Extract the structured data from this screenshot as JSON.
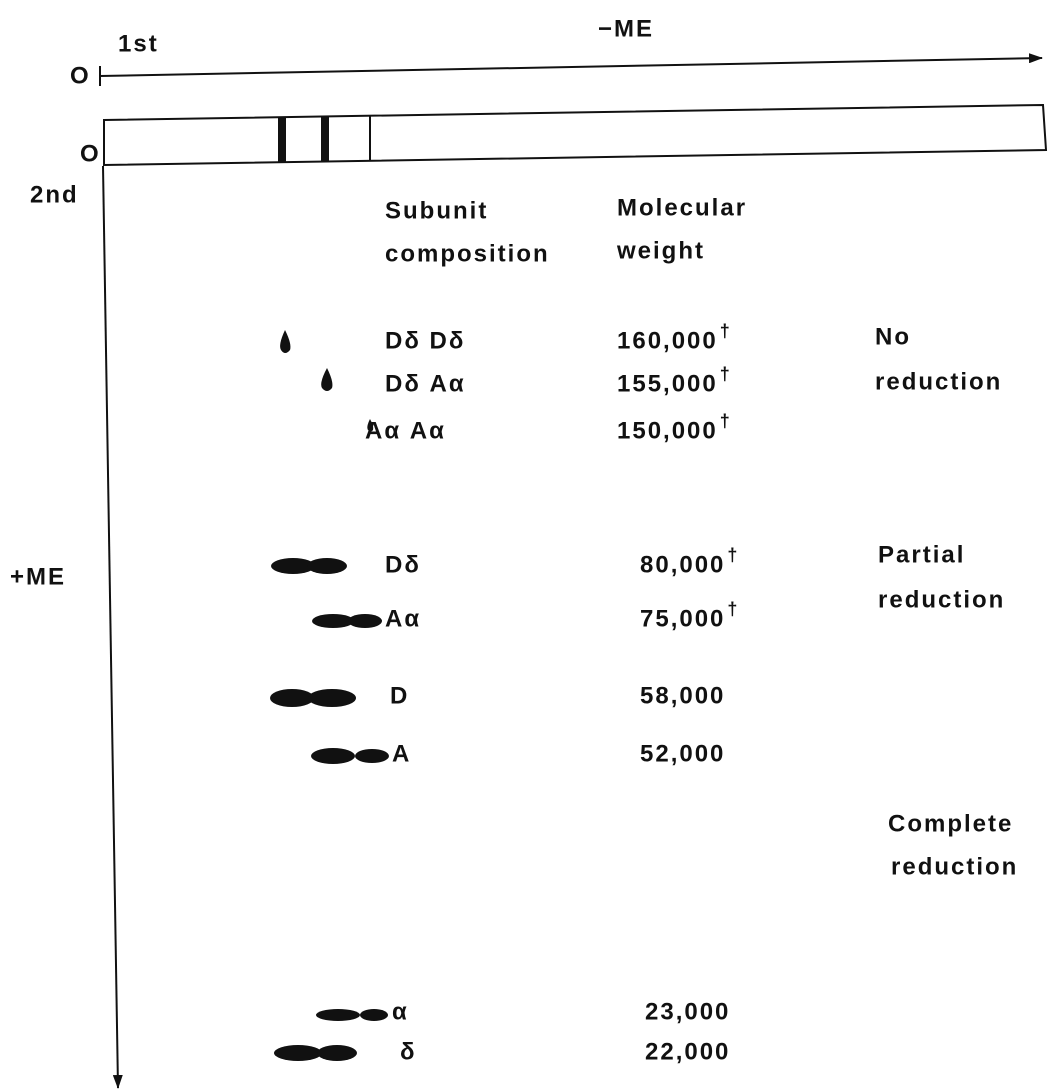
{
  "axes": {
    "first": "1st",
    "first_condition": "−ME",
    "origin_top": "O",
    "origin_strip": "O",
    "second": "2nd",
    "second_condition": "+ME"
  },
  "headers": {
    "composition": [
      "Subunit",
      "composition"
    ],
    "weight": [
      "Molecular",
      "weight"
    ]
  },
  "rows": [
    {
      "composition": "Dδ Dδ",
      "weight": "160,000",
      "mark": "†"
    },
    {
      "composition": "Dδ Aα",
      "weight": "155,000",
      "mark": "†"
    },
    {
      "composition": "Aα Aα",
      "weight": "150,000",
      "mark": "†"
    },
    {
      "composition": "Dδ",
      "weight": "80,000",
      "mark": "†"
    },
    {
      "composition": "Aα",
      "weight": "75,000",
      "mark": "†"
    },
    {
      "composition": "D",
      "weight": "58,000"
    },
    {
      "composition": "A",
      "weight": "52,000"
    },
    {
      "composition": "α",
      "weight": "23,000"
    },
    {
      "composition": "δ",
      "weight": "22,000"
    }
  ],
  "groups": [
    {
      "label": [
        "No",
        "reduction"
      ]
    },
    {
      "label": [
        "Partial",
        "reduction"
      ]
    },
    {
      "label": [
        "Complete",
        "reduction"
      ]
    }
  ]
}
